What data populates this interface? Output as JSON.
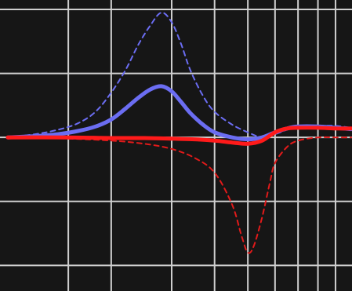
{
  "colors": {
    "background": "#161616",
    "grid": "#cfcfcf",
    "series_blue": "#6b6df2",
    "series_blue_dashed": "#6b6df2",
    "series_red": "#ff1a1a",
    "series_red_dashed": "#e21a1a"
  },
  "chart_data": {
    "type": "line",
    "title": "",
    "xlabel": "",
    "ylabel": "",
    "x_scale": "log",
    "xlim": [
      1,
      10
    ],
    "ylim": [
      -2.4,
      2.0
    ],
    "grid": true,
    "legend": "none",
    "x_gridlines": [
      1.5,
      2,
      3,
      4,
      5,
      6,
      7,
      8,
      9
    ],
    "y_gridlines": [
      -2.0,
      -1.0,
      0.0,
      1.0,
      2.0
    ],
    "series": [
      {
        "style": "dashed",
        "color": "#6b6df2",
        "x": [
          1.0,
          1.2,
          1.4,
          1.6,
          1.8,
          2.0,
          2.2,
          2.4,
          2.6,
          2.8,
          3.0,
          3.2,
          3.4,
          3.7,
          4.0,
          4.5,
          5.0,
          5.5,
          6.0,
          6.5,
          7.0,
          8.0,
          9.0,
          10.0
        ],
        "y": [
          0.0,
          0.05,
          0.12,
          0.22,
          0.4,
          0.7,
          1.05,
          1.45,
          1.75,
          1.95,
          1.8,
          1.45,
          1.05,
          0.65,
          0.4,
          0.2,
          0.08,
          0.0,
          0.05,
          0.12,
          0.15,
          0.18,
          0.18,
          0.15
        ]
      },
      {
        "style": "solid",
        "color": "#6b6df2",
        "x": [
          1.0,
          1.2,
          1.4,
          1.6,
          1.8,
          2.0,
          2.2,
          2.4,
          2.6,
          2.8,
          3.0,
          3.2,
          3.4,
          3.7,
          4.0,
          4.5,
          5.0,
          5.5,
          6.0,
          6.5,
          7.0,
          8.0,
          9.0,
          10.0
        ],
        "y": [
          0.0,
          0.02,
          0.05,
          0.1,
          0.17,
          0.28,
          0.45,
          0.62,
          0.75,
          0.8,
          0.72,
          0.55,
          0.38,
          0.2,
          0.08,
          0.0,
          -0.03,
          0.0,
          0.08,
          0.14,
          0.17,
          0.17,
          0.15,
          0.13
        ]
      },
      {
        "style": "dashed",
        "color": "#e21a1a",
        "x": [
          1.0,
          1.5,
          2.0,
          2.5,
          3.0,
          3.5,
          4.0,
          4.5,
          4.8,
          5.0,
          5.2,
          5.5,
          5.8,
          6.0,
          6.5,
          7.0,
          8.0,
          9.0,
          10.0
        ],
        "y": [
          0.0,
          -0.02,
          -0.05,
          -0.1,
          -0.18,
          -0.32,
          -0.55,
          -1.05,
          -1.55,
          -1.8,
          -1.7,
          -1.25,
          -0.7,
          -0.4,
          -0.15,
          -0.05,
          0.0,
          0.0,
          0.0
        ]
      },
      {
        "style": "solid",
        "color": "#ff1a1a",
        "x": [
          1.0,
          1.5,
          2.0,
          2.5,
          3.0,
          3.5,
          4.0,
          4.5,
          5.0,
          5.5,
          6.0,
          6.5,
          7.0,
          8.0,
          9.0,
          10.0
        ],
        "y": [
          0.0,
          0.0,
          -0.01,
          -0.01,
          -0.02,
          -0.03,
          -0.05,
          -0.08,
          -0.1,
          -0.05,
          0.08,
          0.14,
          0.15,
          0.15,
          0.14,
          0.14
        ]
      }
    ]
  }
}
